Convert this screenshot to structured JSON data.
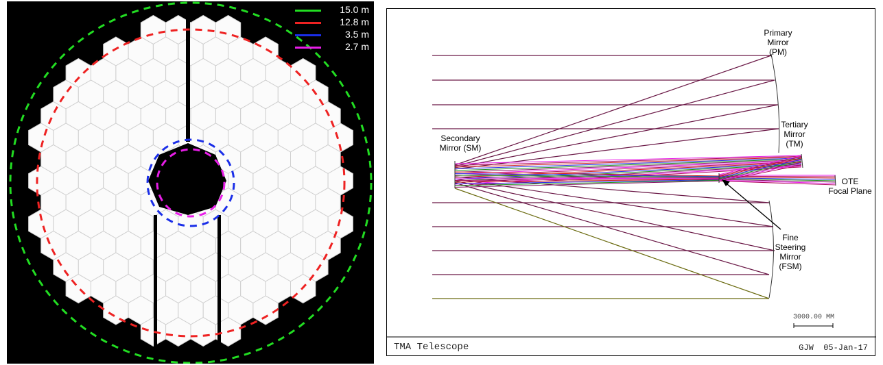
{
  "segments_panel": {
    "legend": [
      {
        "label": "15.0 m",
        "color": "#22dd22"
      },
      {
        "label": "12.8 m",
        "color": "#ee2222"
      },
      {
        "label": "3.5 m",
        "color": "#1a2ee8"
      },
      {
        "label": "2.7 m",
        "color": "#e81ee8"
      }
    ]
  },
  "layout_panel": {
    "labels": {
      "pm": [
        "Primary",
        "Mirror",
        "(PM)"
      ],
      "sm": [
        "Secondary",
        "Mirror (SM)"
      ],
      "tm": [
        "Tertiary",
        "Mirror",
        "(TM)"
      ],
      "fp": [
        "OTE",
        "Focal Plane"
      ],
      "fsm": [
        "Fine",
        "Steering",
        "Mirror",
        "(FSM)"
      ]
    },
    "scale_bar": "3000.00 MM",
    "footer_title": "TMA Telescope",
    "footer_author": "GJW",
    "footer_date": "05-Jan-17"
  }
}
